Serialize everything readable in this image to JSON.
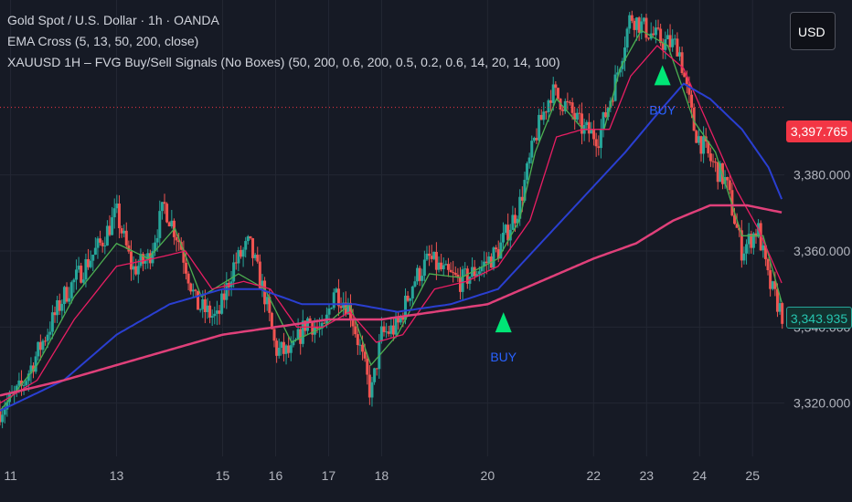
{
  "header": {
    "symbol_title": "Gold Spot / U.S. Dollar · 1h · OANDA",
    "indicator_ema": "EMA Cross (5, 13, 50, 200, close)",
    "indicator_fvg": "XAUUSD 1H – FVG Buy/Sell Signals (No Boxes) (50, 200, 0.6, 200, 0.5, 0.2, 0.6, 14, 20, 14, 100)"
  },
  "currency_button": "USD",
  "price_tags": {
    "last_price": "3,397.765",
    "ema_value": "3,343.935"
  },
  "colors": {
    "background": "#161a25",
    "up_candle": "#26a69a",
    "down_candle": "#ef5350",
    "ema_fast": "#4caf50",
    "ema_mid": "#e91e63",
    "ema_50": "#2a3fd1",
    "ema_200": "#e0407a",
    "signal": "#00e676",
    "signal_text": "#2962ff"
  },
  "chart_data": {
    "type": "candlestick",
    "y_axis": {
      "min": 3306,
      "max": 3426,
      "ticks": [
        3320,
        3340,
        3360,
        3380
      ],
      "tick_labels": [
        "3,320.000",
        "3,340.000",
        "3,360.000",
        "3,380.000"
      ]
    },
    "x_axis": {
      "start_day": 10.8,
      "end_day": 25.6,
      "ticks": [
        {
          "label": "11",
          "day": 11
        },
        {
          "label": "13",
          "day": 13
        },
        {
          "label": "15",
          "day": 15
        },
        {
          "label": "16",
          "day": 16
        },
        {
          "label": "17",
          "day": 17
        },
        {
          "label": "18",
          "day": 18
        },
        {
          "label": "20",
          "day": 20
        },
        {
          "label": "22",
          "day": 22
        },
        {
          "label": "23",
          "day": 23
        },
        {
          "label": "24",
          "day": 24
        },
        {
          "label": "25",
          "day": 25
        }
      ]
    },
    "price_path": [
      [
        10.8,
        3318
      ],
      [
        11.2,
        3324
      ],
      [
        11.6,
        3336
      ],
      [
        12.0,
        3348
      ],
      [
        12.4,
        3356
      ],
      [
        12.7,
        3362
      ],
      [
        13.0,
        3370
      ],
      [
        13.3,
        3355
      ],
      [
        13.6,
        3358
      ],
      [
        13.9,
        3372
      ],
      [
        14.2,
        3362
      ],
      [
        14.5,
        3346
      ],
      [
        14.9,
        3342
      ],
      [
        15.2,
        3356
      ],
      [
        15.5,
        3362
      ],
      [
        15.8,
        3348
      ],
      [
        16.0,
        3334
      ],
      [
        16.3,
        3333
      ],
      [
        16.6,
        3342
      ],
      [
        16.9,
        3338
      ],
      [
        17.1,
        3350
      ],
      [
        17.4,
        3345
      ],
      [
        17.6,
        3334
      ],
      [
        17.8,
        3322
      ],
      [
        18.0,
        3338
      ],
      [
        18.3,
        3340
      ],
      [
        18.6,
        3352
      ],
      [
        18.9,
        3358
      ],
      [
        19.2,
        3354
      ],
      [
        19.5,
        3352
      ],
      [
        19.9,
        3356
      ],
      [
        20.2,
        3360
      ],
      [
        20.6,
        3372
      ],
      [
        20.9,
        3390
      ],
      [
        21.2,
        3402
      ],
      [
        21.5,
        3398
      ],
      [
        21.8,
        3392
      ],
      [
        22.1,
        3390
      ],
      [
        22.4,
        3404
      ],
      [
        22.7,
        3422
      ],
      [
        23.0,
        3418
      ],
      [
        23.3,
        3415
      ],
      [
        23.6,
        3414
      ],
      [
        23.9,
        3392
      ],
      [
        24.2,
        3384
      ],
      [
        24.5,
        3378
      ],
      [
        24.8,
        3360
      ],
      [
        25.1,
        3366
      ],
      [
        25.3,
        3352
      ],
      [
        25.6,
        3342
      ]
    ],
    "series": [
      {
        "key": "ema_fast",
        "points": [
          [
            10.8,
            3318
          ],
          [
            11.5,
            3330
          ],
          [
            12.2,
            3348
          ],
          [
            13.0,
            3362
          ],
          [
            13.6,
            3358
          ],
          [
            14.1,
            3366
          ],
          [
            14.6,
            3348
          ],
          [
            15.3,
            3354
          ],
          [
            15.8,
            3350
          ],
          [
            16.3,
            3336
          ],
          [
            16.9,
            3340
          ],
          [
            17.4,
            3346
          ],
          [
            17.8,
            3330
          ],
          [
            18.3,
            3338
          ],
          [
            18.9,
            3354
          ],
          [
            19.5,
            3353
          ],
          [
            20.2,
            3358
          ],
          [
            20.6,
            3368
          ],
          [
            20.9,
            3386
          ],
          [
            21.3,
            3400
          ],
          [
            21.8,
            3392
          ],
          [
            22.2,
            3392
          ],
          [
            22.5,
            3408
          ],
          [
            22.9,
            3418
          ],
          [
            23.4,
            3414
          ],
          [
            23.9,
            3394
          ],
          [
            24.3,
            3386
          ],
          [
            24.8,
            3364
          ],
          [
            25.2,
            3364
          ],
          [
            25.6,
            3344
          ]
        ]
      },
      {
        "key": "ema_mid",
        "points": [
          [
            10.8,
            3320
          ],
          [
            11.5,
            3326
          ],
          [
            12.2,
            3342
          ],
          [
            13.0,
            3356
          ],
          [
            13.7,
            3358
          ],
          [
            14.3,
            3360
          ],
          [
            14.8,
            3350
          ],
          [
            15.4,
            3352
          ],
          [
            15.9,
            3350
          ],
          [
            16.4,
            3340
          ],
          [
            16.9,
            3340
          ],
          [
            17.4,
            3344
          ],
          [
            17.9,
            3336
          ],
          [
            18.4,
            3338
          ],
          [
            19.0,
            3350
          ],
          [
            19.6,
            3352
          ],
          [
            20.2,
            3356
          ],
          [
            20.8,
            3368
          ],
          [
            21.3,
            3390
          ],
          [
            21.8,
            3392
          ],
          [
            22.3,
            3392
          ],
          [
            22.7,
            3406
          ],
          [
            23.2,
            3414
          ],
          [
            23.7,
            3408
          ],
          [
            24.2,
            3392
          ],
          [
            24.7,
            3376
          ],
          [
            25.1,
            3366
          ],
          [
            25.6,
            3350
          ]
        ]
      },
      {
        "key": "ema_50",
        "points": [
          [
            10.8,
            3318
          ],
          [
            12.0,
            3326
          ],
          [
            13.0,
            3338
          ],
          [
            14.0,
            3346
          ],
          [
            15.0,
            3350
          ],
          [
            15.7,
            3350
          ],
          [
            16.5,
            3346
          ],
          [
            17.5,
            3346
          ],
          [
            18.3,
            3344
          ],
          [
            19.3,
            3346
          ],
          [
            20.2,
            3350
          ],
          [
            21.0,
            3362
          ],
          [
            21.8,
            3374
          ],
          [
            22.6,
            3386
          ],
          [
            23.2,
            3396
          ],
          [
            23.7,
            3404
          ],
          [
            24.2,
            3400
          ],
          [
            24.8,
            3392
          ],
          [
            25.3,
            3382
          ],
          [
            25.6,
            3372
          ]
        ]
      },
      {
        "key": "ema_200",
        "points": [
          [
            10.8,
            3322
          ],
          [
            12.0,
            3326
          ],
          [
            13.0,
            3330
          ],
          [
            14.0,
            3334
          ],
          [
            15.0,
            3338
          ],
          [
            16.0,
            3340
          ],
          [
            17.0,
            3342
          ],
          [
            18.0,
            3342
          ],
          [
            19.0,
            3344
          ],
          [
            20.0,
            3346
          ],
          [
            21.0,
            3352
          ],
          [
            22.0,
            3358
          ],
          [
            22.8,
            3362
          ],
          [
            23.5,
            3368
          ],
          [
            24.2,
            3372
          ],
          [
            24.9,
            3372
          ],
          [
            25.6,
            3370
          ]
        ]
      }
    ],
    "signals": [
      {
        "label": "BUY",
        "day": 20.3,
        "price": 3341
      },
      {
        "label": "BUY",
        "day": 23.3,
        "price": 3406
      }
    ],
    "last_price_line": 3397.765
  }
}
